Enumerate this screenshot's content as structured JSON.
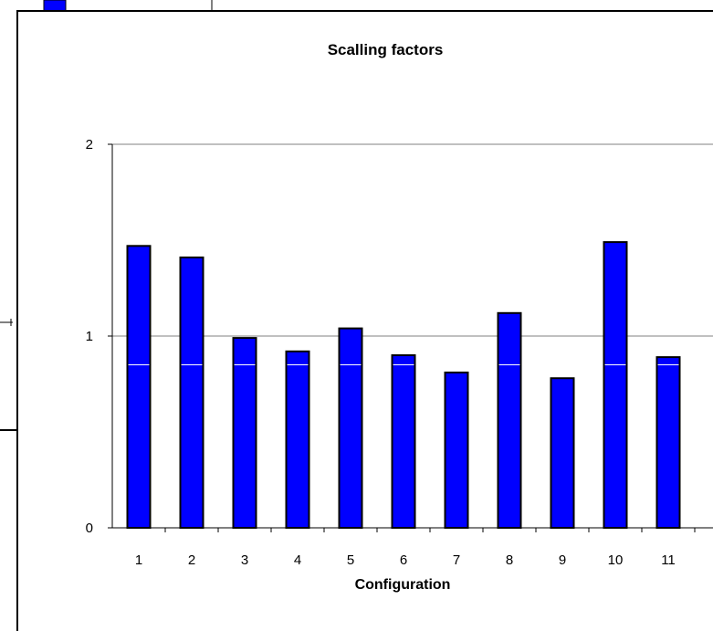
{
  "colors": {
    "bar_fill": "#0000ff",
    "bar_stroke": "#000000",
    "gridline": "#808080",
    "background": "#ffffff"
  },
  "chart_data": {
    "type": "bar",
    "title": "Scalling factors",
    "xlabel": "Configuration",
    "ylabel": "",
    "categories": [
      "1",
      "2",
      "3",
      "4",
      "5",
      "6",
      "7",
      "8",
      "9",
      "10",
      "11"
    ],
    "values": [
      1.47,
      1.41,
      0.99,
      0.92,
      1.04,
      0.9,
      0.81,
      1.12,
      0.78,
      1.49,
      0.89
    ],
    "ylim": [
      0,
      2
    ],
    "yticks": [
      "0",
      "1",
      "2"
    ],
    "grid": true,
    "legend": "none"
  }
}
